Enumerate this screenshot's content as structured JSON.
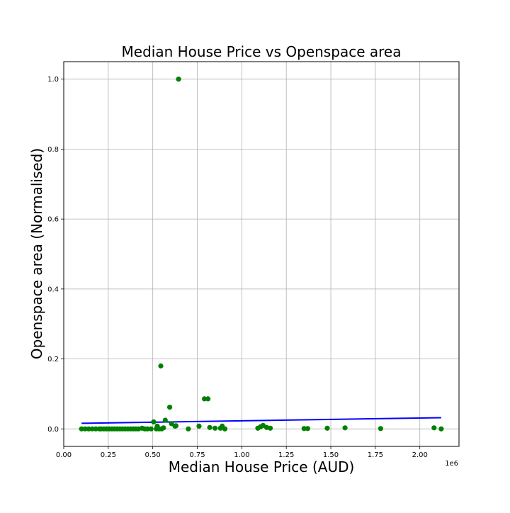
{
  "chart_data": {
    "type": "scatter",
    "title": "Median House Price vs Openspace area",
    "xlabel": "Median House Price (AUD)",
    "ylabel": "Openspace area (Normalised)",
    "x_offset_label": "1e6",
    "xlim": [
      0,
      2220000
    ],
    "ylim": [
      -0.05,
      1.05
    ],
    "x_ticks": [
      0,
      250000,
      500000,
      750000,
      1000000,
      1250000,
      1500000,
      1750000,
      2000000
    ],
    "x_tick_labels": [
      "0.00",
      "0.25",
      "0.50",
      "0.75",
      "1.00",
      "1.25",
      "1.50",
      "1.75",
      "2.00"
    ],
    "y_ticks": [
      0,
      0.2,
      0.4,
      0.6,
      0.8,
      1.0
    ],
    "y_tick_labels": [
      "0.0",
      "0.2",
      "0.4",
      "0.6",
      "0.8",
      "1.0"
    ],
    "grid": true,
    "legend": "none",
    "colors": {
      "points": "#008000",
      "fit_line": "#0000ff",
      "grid": "#b0b0b0",
      "axes": "#000000"
    },
    "series": [
      {
        "kind": "points",
        "x": [
          100000,
          120000,
          140000,
          160000,
          180000,
          200000,
          210000,
          225000,
          240000,
          255000,
          270000,
          285000,
          300000,
          315000,
          330000,
          345000,
          360000,
          375000,
          390000,
          405000,
          420000,
          440000,
          455000,
          470000,
          490000,
          505000,
          520000,
          525000,
          535000,
          545000,
          550000,
          560000,
          570000,
          595000,
          605000,
          625000,
          630000,
          645000,
          700000,
          760000,
          790000,
          810000,
          820000,
          850000,
          880000,
          890000,
          905000,
          1090000,
          1105000,
          1120000,
          1140000,
          1160000,
          1350000,
          1370000,
          1480000,
          1580000,
          1780000,
          2080000,
          2120000
        ],
        "y": [
          0,
          0,
          0,
          0,
          0,
          0,
          0,
          0,
          0,
          0,
          0,
          0,
          0,
          0,
          0,
          0,
          0,
          0,
          0,
          0,
          0,
          0.002,
          0,
          0,
          0,
          0.02,
          0,
          0.008,
          0,
          0.18,
          0,
          0.003,
          0.025,
          0.062,
          0.015,
          0.008,
          0.009,
          1.0,
          0,
          0.008,
          0.086,
          0.086,
          0.004,
          0.002,
          0.002,
          0.008,
          0,
          0.002,
          0.006,
          0.01,
          0.004,
          0.002,
          0.001,
          0.001,
          0.002,
          0.003,
          0.001,
          0.003,
          0
        ]
      },
      {
        "kind": "fit_line",
        "x": [
          100000,
          2120000
        ],
        "y": [
          0.016,
          0.032
        ]
      }
    ]
  }
}
